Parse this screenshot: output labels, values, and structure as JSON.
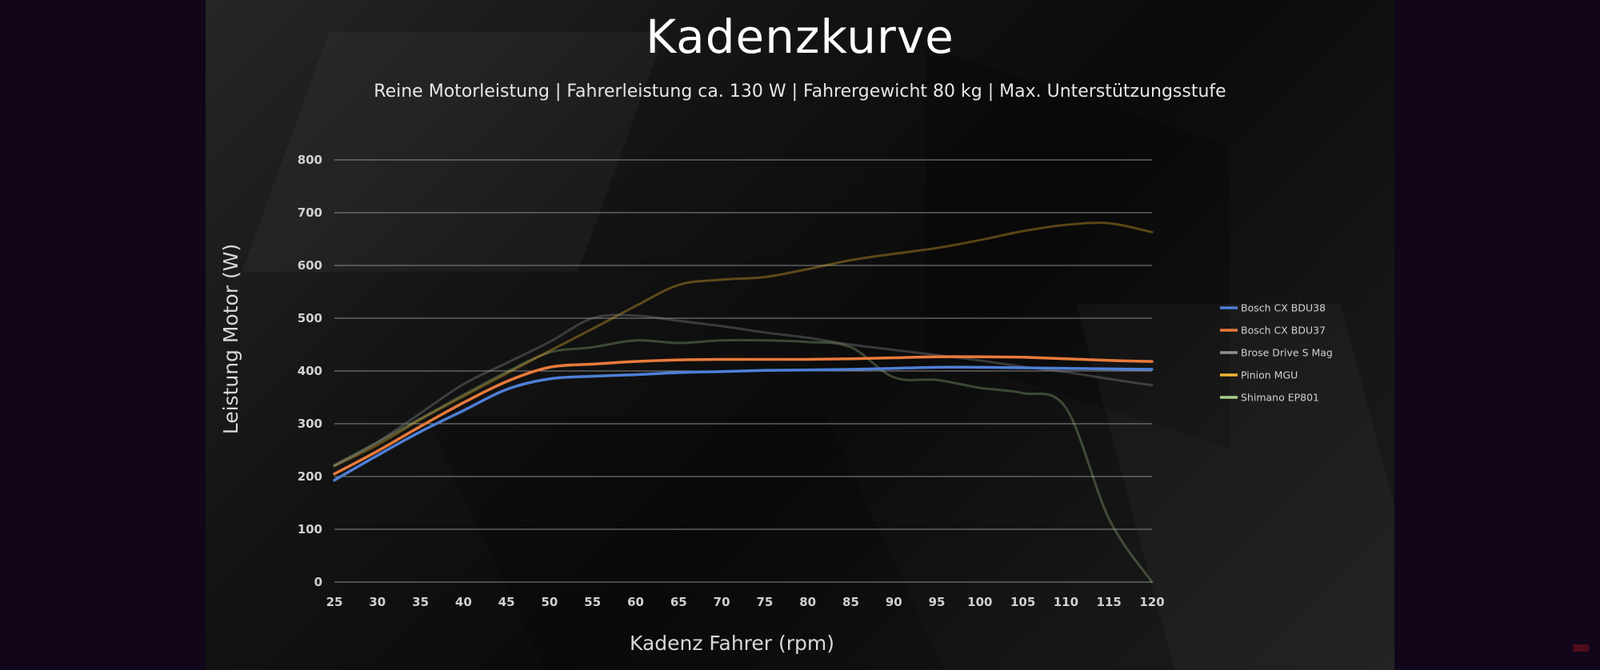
{
  "chart_data": {
    "type": "line",
    "title": "Kadenzkurve",
    "subtitle": "Reine Motorleistung | Fahrerleistung ca. 130 W | Fahrergewicht 80 kg  |  Max. Unterstützungsstufe",
    "xlabel": "Kadenz Fahrer (rpm)",
    "ylabel": "Leistung Motor (W)",
    "xlim": [
      25,
      120
    ],
    "ylim": [
      0,
      800
    ],
    "x_ticks": [
      25,
      30,
      35,
      40,
      45,
      50,
      55,
      60,
      65,
      70,
      75,
      80,
      85,
      90,
      95,
      100,
      105,
      110,
      115,
      120
    ],
    "y_ticks": [
      0,
      100,
      200,
      300,
      400,
      500,
      600,
      700,
      800
    ],
    "grid": "horizontal",
    "legend": "right",
    "x": [
      25,
      30,
      35,
      40,
      45,
      50,
      55,
      60,
      65,
      70,
      75,
      80,
      85,
      90,
      95,
      100,
      105,
      110,
      115,
      120
    ],
    "series": [
      {
        "name": "Bosch CX BDU38",
        "color": "#4f7fd6",
        "values": [
          193,
          240,
          285,
          325,
          365,
          385,
          390,
          393,
          397,
          399,
          401,
          402,
          403,
          405,
          407,
          407,
          406,
          405,
          404,
          403
        ]
      },
      {
        "name": "Bosch CX BDU37",
        "color": "#e97a3b",
        "values": [
          205,
          248,
          295,
          340,
          380,
          407,
          413,
          418,
          421,
          422,
          422,
          422,
          423,
          425,
          427,
          427,
          426,
          423,
          420,
          418
        ]
      },
      {
        "name": "Brose Drive S Mag",
        "color": "#8f8f8f",
        "values": [
          220,
          265,
          320,
          375,
          415,
          455,
          500,
          505,
          495,
          485,
          473,
          463,
          450,
          440,
          430,
          420,
          408,
          398,
          385,
          373
        ]
      },
      {
        "name": "Pinion MGU",
        "color": "#f2b632",
        "values": [
          220,
          260,
          308,
          352,
          395,
          438,
          480,
          523,
          563,
          573,
          578,
          593,
          610,
          622,
          633,
          648,
          665,
          677,
          680,
          663
        ]
      },
      {
        "name": "Shimano EP801",
        "color": "#a8d08d",
        "values": [
          222,
          265,
          310,
          355,
          398,
          435,
          445,
          458,
          453,
          458,
          458,
          455,
          445,
          388,
          383,
          368,
          358,
          330,
          120,
          0
        ]
      }
    ]
  }
}
